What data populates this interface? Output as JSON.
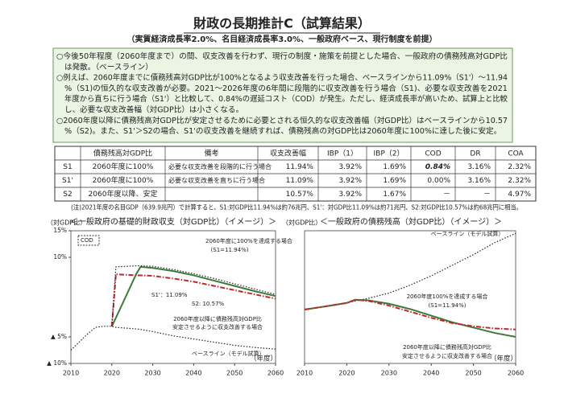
{
  "header": {
    "title": "財政の長期推計C（試算結果）",
    "subtitle": "（実質経済成長率2.0%、名目経済成長率3.0%、一般政府ベース、現行制度を前提）"
  },
  "summary": [
    [
      "○今後50年程度（2060年度まで）の間、収支改善を行わず、現行の制度・施策を前提とした場合、一般政府の債務残高対GDP比",
      "は発散。（ベースライン）"
    ],
    [
      "○例えば、2060年度までに債務残高対GDP比が100%となるよう収支改善を行った場合、ベースラインから11.09%（S1'）～11.94",
      "%（S1)の恒久的な収支改善が必要。2021～2026年度の6年間に段階的に収支改善を行う場合（S1)、必要な収支改善を2021",
      "年度から直ちに行う場合（S1'）と比較して、0.84%の遅延コスト（COD）が発生。ただし、経済成長率が高いため、試算上と比較",
      "し、必要な収支改善幅（対GDP比）は小さくなる。"
    ],
    [
      "○2060年度以降に債務残高対GDP比が安定させるために必要とされる恒久的な収支改善幅（対GDP比）はベースラインから10.57",
      "%（S2)。また、S1'＞S2の場合、S1'の収支改善を継続すれば、債務残高の対GDP比は2060年度に100%に達した後に安定。"
    ]
  ],
  "table": {
    "header": [
      "債務残高対GDP比",
      "備考",
      "収支改善幅",
      "IBP（1）",
      "IBP（2）",
      "COD",
      "DR",
      "COA"
    ],
    "rows": [
      [
        "S1",
        "2060年度に100%",
        "必要な収支改善を段階的に行う場合",
        "11.94%",
        "3.92%",
        "1.69%",
        "0.84%",
        "3.16%",
        "2.32%"
      ],
      [
        "S1'",
        "2060年度に100%",
        "必要な収支改善を直ちに行う場合",
        "11.09%",
        "3.92%",
        "1.69%",
        "0.00%",
        "3.16%",
        "2.32%"
      ],
      [
        "S2",
        "2060年度以降、安定",
        "",
        "10.57%",
        "3.92%",
        "1.67%",
        "－",
        "－",
        "4.97%"
      ]
    ]
  },
  "note": "(注)2021年度の名目GDP（639.9兆円）で計算すると、S1:対GDP比11.94%は約76兆円、S1'：対GDP比11.09%は約71兆円、S2:対GDP比10.57%は約68兆円に相当。",
  "chart_data": [
    {
      "type": "line",
      "title": "＜一般政府の基礎的財政収支（対GDP比）（イメージ）＞",
      "y_label": "（対GDP比）",
      "x_label": "（年度）",
      "xlim": [
        2010,
        2060
      ],
      "xticks": [
        2010,
        2020,
        2030,
        2040,
        2050,
        2060
      ],
      "ylim": [
        -10,
        15
      ],
      "yticks": [
        {
          "value": 15,
          "label": "15%"
        },
        {
          "value": 10,
          "label": "10%"
        },
        {
          "value": -5,
          "label": "▲ 5%"
        },
        {
          "value": -10,
          "label": "▲ 10%"
        }
      ],
      "x": [
        2010,
        2012,
        2014,
        2016,
        2018,
        2020,
        2021,
        2026,
        2027,
        2030,
        2035,
        2040,
        2045,
        2050,
        2055,
        2060
      ],
      "series": [
        {
          "color": "#222222",
          "style": "dotted",
          "values": [
            -7.5,
            -6,
            -4.5,
            -3.2,
            -3,
            -3,
            -3.2,
            -3.5,
            -3.6,
            -4,
            -4.8,
            -5.4,
            -6,
            -6.6,
            -7,
            -7.3
          ]
        },
        {
          "color": "#3a7a3a",
          "style": "solid",
          "values": [
            null,
            null,
            null,
            null,
            null,
            -3,
            -1.4,
            6.9,
            8.2,
            8,
            7.4,
            6.6,
            5.6,
            4.6,
            3.6,
            2.7
          ]
        },
        {
          "color": "#c0282a",
          "style": "dashdot",
          "values": [
            null,
            null,
            null,
            null,
            null,
            -3,
            6.8,
            6.6,
            6.6,
            6.5,
            6,
            5.4,
            4.6,
            3.8,
            3,
            2.2
          ]
        },
        {
          "color": "#222222",
          "style": "dotted",
          "values": [
            null,
            null,
            null,
            null,
            null,
            -3,
            8.2,
            8.4,
            8.4,
            8.3,
            7.7,
            6.9,
            6,
            5,
            4,
            3
          ]
        }
      ],
      "annotations": [
        "COD",
        "2060年度に100%を達成する場合",
        "(S1=11.94%)",
        "S1'：11.09%",
        "S2: 10.57%",
        "2060年度以降に債務残高対GDP比",
        "安定させるように収支改善する場合",
        "ベースライン（モデル試算）"
      ]
    },
    {
      "type": "line",
      "title": "＜一般政府の債務残高（対GDP比）（イメージ）＞",
      "y_label": "（対GDP比）",
      "x_label": "（年度）",
      "xlim": [
        2010,
        2060
      ],
      "xticks": [
        2010,
        2020,
        2030,
        2040,
        2050,
        2060
      ],
      "ylim": [
        0,
        500
      ],
      "x": [
        2010,
        2015,
        2020,
        2022,
        2025,
        2030,
        2035,
        2040,
        2045,
        2050,
        2055,
        2060
      ],
      "series": [
        {
          "color": "#222222",
          "style": "dotted",
          "values": [
            203,
            215,
            228,
            235,
            245,
            265,
            295,
            330,
            370,
            410,
            455,
            490
          ]
        },
        {
          "color": "#3a7a3a",
          "style": "solid",
          "values": [
            203,
            215,
            228,
            240,
            238,
            225,
            205,
            180,
            155,
            135,
            115,
            100
          ]
        },
        {
          "color": "#c0282a",
          "style": "dashdot",
          "values": [
            203,
            215,
            228,
            240,
            236,
            218,
            195,
            172,
            152,
            140,
            132,
            128
          ]
        }
      ],
      "annotations": [
        "ベースライン（モデル試算）",
        "2060年度100%を達成する場合",
        "(S1=11.94%)",
        "2060年度以降に債務残高対GDP比",
        "安定させるように収支改善する場合"
      ]
    }
  ]
}
